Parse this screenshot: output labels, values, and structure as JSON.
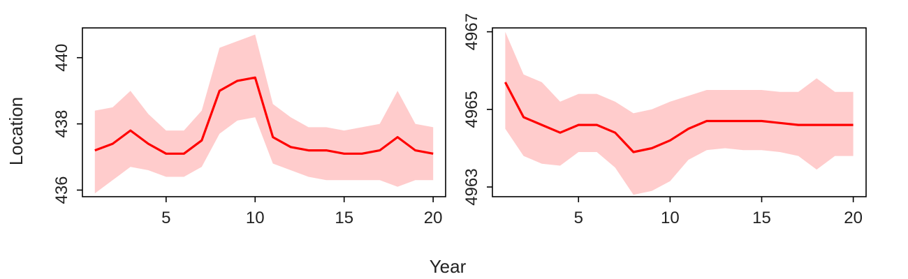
{
  "xlabel": "Year",
  "ylabel": "Location",
  "colors": {
    "line": "#ff0000",
    "band": "#ffcccc",
    "frame": "#000000"
  },
  "chart_data": [
    {
      "type": "line",
      "title": "",
      "xlim": [
        0.3,
        20.7
      ],
      "ylim": [
        435.8,
        440.9
      ],
      "xticks": [
        5,
        10,
        15,
        20
      ],
      "xtick_labels": [
        "5",
        "10",
        "15",
        "20"
      ],
      "yticks": [
        436,
        438,
        440
      ],
      "ytick_labels": [
        "436",
        "438",
        "440"
      ],
      "x": [
        1,
        2,
        3,
        4,
        5,
        6,
        7,
        8,
        9,
        10,
        11,
        12,
        13,
        14,
        15,
        16,
        17,
        18,
        19,
        20
      ],
      "series": [
        {
          "values": [
            437.2,
            437.4,
            437.8,
            437.4,
            437.1,
            437.1,
            437.5,
            439.0,
            439.3,
            439.4,
            437.6,
            437.3,
            437.2,
            437.2,
            437.1,
            437.1,
            437.2,
            437.6,
            437.2,
            437.1
          ]
        }
      ],
      "band_upper": [
        438.4,
        438.5,
        439.0,
        438.3,
        437.8,
        437.8,
        438.4,
        440.3,
        440.5,
        440.7,
        438.6,
        438.2,
        437.9,
        437.9,
        437.8,
        437.9,
        438.0,
        439.0,
        438.0,
        437.9
      ],
      "band_lower": [
        435.9,
        436.3,
        436.7,
        436.6,
        436.4,
        436.4,
        436.7,
        437.7,
        438.1,
        438.2,
        436.8,
        436.6,
        436.4,
        436.3,
        436.3,
        436.3,
        436.3,
        436.1,
        436.3,
        436.3
      ],
      "grid": false
    },
    {
      "type": "line",
      "title": "",
      "xlim": [
        0.3,
        20.7
      ],
      "ylim": [
        4962.75,
        4967.1
      ],
      "xticks": [
        5,
        10,
        15,
        20
      ],
      "xtick_labels": [
        "5",
        "10",
        "15",
        "20"
      ],
      "yticks": [
        4963,
        4965,
        4967
      ],
      "ytick_labels": [
        "4963",
        "4965",
        "4967"
      ],
      "x": [
        1,
        2,
        3,
        4,
        5,
        6,
        7,
        8,
        9,
        10,
        11,
        12,
        13,
        14,
        15,
        16,
        17,
        18,
        19,
        20
      ],
      "series": [
        {
          "values": [
            4965.7,
            4964.8,
            4964.6,
            4964.4,
            4964.6,
            4964.6,
            4964.4,
            4963.9,
            4964.0,
            4964.2,
            4964.5,
            4964.7,
            4964.7,
            4964.7,
            4964.7,
            4964.65,
            4964.6,
            4964.6,
            4964.6,
            4964.6
          ]
        }
      ],
      "band_upper": [
        4967.0,
        4965.9,
        4965.7,
        4965.2,
        4965.4,
        4965.4,
        4965.2,
        4964.9,
        4965.0,
        4965.2,
        4965.35,
        4965.5,
        4965.5,
        4965.5,
        4965.5,
        4965.45,
        4965.45,
        4965.8,
        4965.45,
        4965.45
      ],
      "band_lower": [
        4964.5,
        4963.8,
        4963.6,
        4963.55,
        4963.9,
        4963.9,
        4963.5,
        4962.8,
        4962.9,
        4963.15,
        4963.7,
        4963.95,
        4964.0,
        4963.95,
        4963.95,
        4963.9,
        4963.8,
        4963.45,
        4963.8,
        4963.8
      ],
      "grid": false
    }
  ]
}
